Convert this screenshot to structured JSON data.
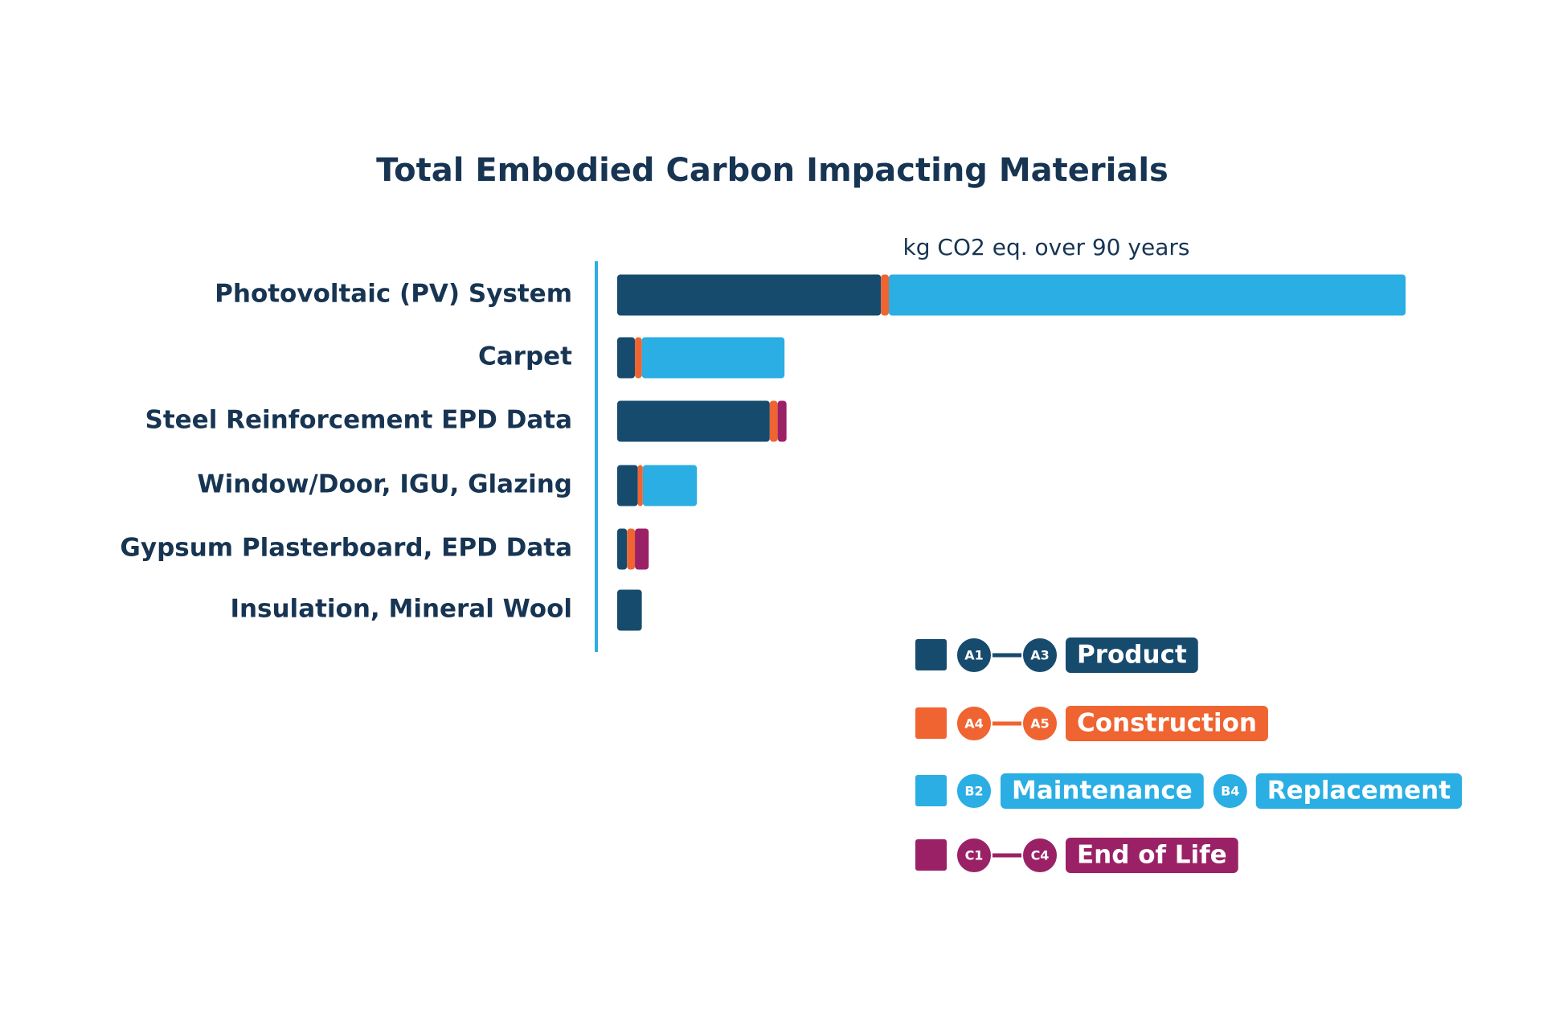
{
  "chart_data": {
    "type": "stacked-bar-horizontal",
    "title": "Total Embodied Carbon Impacting Materials",
    "subtitle": "kg CO2 eq. over 90 years",
    "categories": [
      "Photovoltaic (PV) System",
      "Carpet",
      "Steel Reinforcement EPD Data",
      "Window/Door, IGU, Glazing",
      "Gypsum Plasterboard, EPD Data",
      "Insulation, Mineral Wool"
    ],
    "series": [
      {
        "name": "Product",
        "color": "#174b6e",
        "codes": [
          "A1",
          "A3"
        ],
        "values": [
          268,
          18,
          155,
          21,
          10,
          25
        ]
      },
      {
        "name": "Construction",
        "color": "#ef6430",
        "codes": [
          "A4",
          "A5"
        ],
        "values": [
          8,
          7,
          8,
          5,
          8,
          0
        ]
      },
      {
        "name": "Maintenance",
        "color": "#2aaee3",
        "codes": [
          "B2"
        ],
        "extra": {
          "code": "B4",
          "label": "Replacement"
        },
        "values": [
          525,
          145,
          0,
          55,
          0,
          0
        ]
      },
      {
        "name": "End of Life",
        "color": "#9b2166",
        "codes": [
          "C1",
          "C4"
        ],
        "values": [
          0,
          0,
          9,
          0,
          14,
          0
        ]
      }
    ]
  }
}
